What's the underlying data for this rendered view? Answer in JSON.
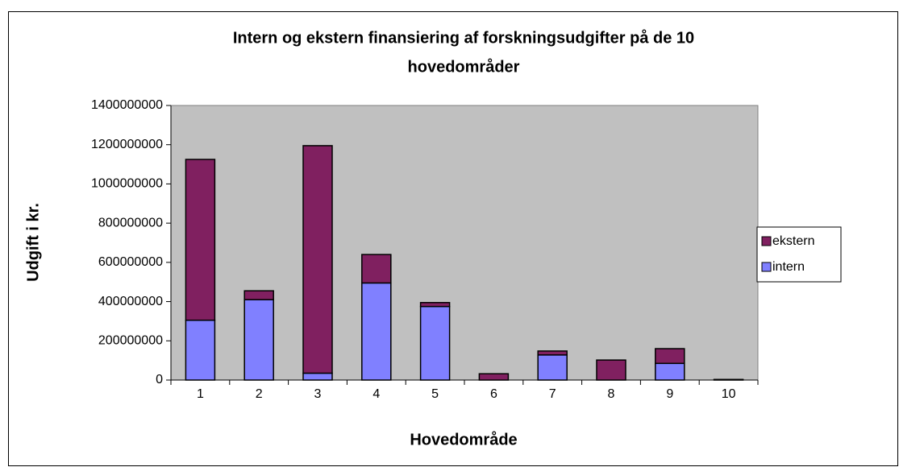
{
  "chart_data": {
    "type": "stacked_bar",
    "title": [
      "Intern og ekstern finansiering af forskningsudgifter på de 10",
      "hovedområder"
    ],
    "xlabel": "Hovedområde",
    "ylabel": "Udgift i kr.",
    "categories": [
      "1",
      "2",
      "3",
      "4",
      "5",
      "6",
      "7",
      "8",
      "9",
      "10"
    ],
    "series": [
      {
        "name": "intern",
        "color": "#8080ff",
        "values": [
          305000000,
          410000000,
          35000000,
          495000000,
          375000000,
          0,
          128000000,
          0,
          85000000,
          1000000
        ]
      },
      {
        "name": "ekstern",
        "color": "#802060",
        "values": [
          820000000,
          45000000,
          1160000000,
          145000000,
          20000000,
          32000000,
          20000000,
          102000000,
          75000000,
          2000000
        ]
      }
    ],
    "ylim": [
      0,
      1400000000
    ],
    "yticks": [
      0,
      200000000,
      400000000,
      600000000,
      800000000,
      1000000000,
      1200000000,
      1400000000
    ],
    "legend": "right"
  }
}
